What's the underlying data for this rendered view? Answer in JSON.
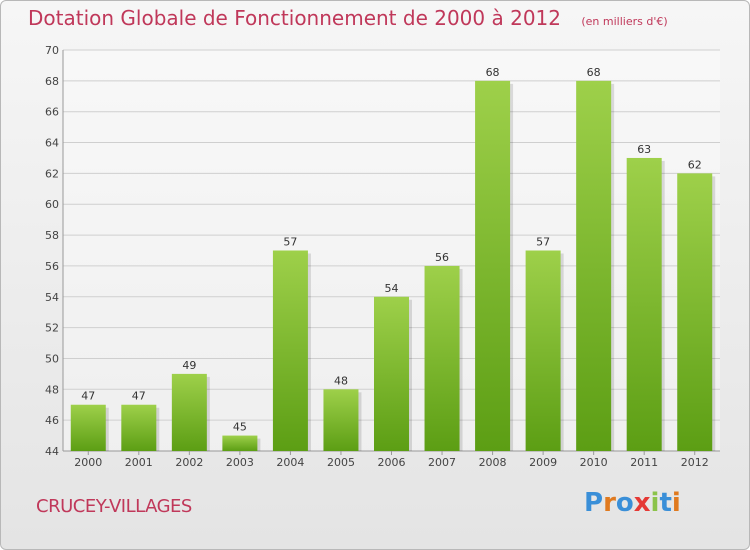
{
  "title": {
    "main": "Dotation Globale de Fonctionnement de 2000 à 2012",
    "unit": "(en milliers d'€)"
  },
  "commune": "CRUCEY-VILLAGES",
  "logo": {
    "text": "Proxiti",
    "letter_colors": [
      "#3a8fd8",
      "#e07a1f",
      "#3a8fd8",
      "#e53935",
      "#8bc34a",
      "#3a8fd8",
      "#e07a1f"
    ]
  },
  "colors": {
    "bar_top": "#9ed04a",
    "bar_bottom": "#5c9e14",
    "title": "#c0385a",
    "grid": "#cfcfcf"
  },
  "chart_data": {
    "type": "bar",
    "title": "Dotation Globale de Fonctionnement de 2000 à 2012",
    "subtitle": "(en milliers d'€)",
    "categories": [
      "2000",
      "2001",
      "2002",
      "2003",
      "2004",
      "2005",
      "2006",
      "2007",
      "2008",
      "2009",
      "2010",
      "2011",
      "2012"
    ],
    "values": [
      47,
      47,
      49,
      45,
      57,
      48,
      54,
      56,
      68,
      57,
      68,
      63,
      62
    ],
    "ylim": [
      44,
      70
    ],
    "yticks": [
      44,
      46,
      48,
      50,
      52,
      54,
      56,
      58,
      60,
      62,
      64,
      66,
      68,
      70
    ],
    "grid": true,
    "data_labels": true
  }
}
